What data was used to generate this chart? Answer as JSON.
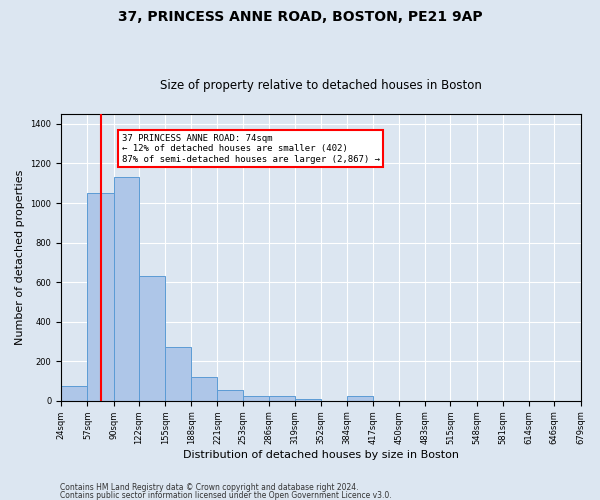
{
  "title1": "37, PRINCESS ANNE ROAD, BOSTON, PE21 9AP",
  "title2": "Size of property relative to detached houses in Boston",
  "xlabel": "Distribution of detached houses by size in Boston",
  "ylabel": "Number of detached properties",
  "footer1": "Contains HM Land Registry data © Crown copyright and database right 2024.",
  "footer2": "Contains public sector information licensed under the Open Government Licence v3.0.",
  "annotation_line1": "37 PRINCESS ANNE ROAD: 74sqm",
  "annotation_line2": "← 12% of detached houses are smaller (402)",
  "annotation_line3": "87% of semi-detached houses are larger (2,867) →",
  "bar_edges": [
    24,
    57,
    90,
    122,
    155,
    188,
    221,
    253,
    286,
    319,
    352,
    384,
    417,
    450,
    483,
    515,
    548,
    581,
    614,
    646,
    679
  ],
  "bar_heights": [
    75,
    1050,
    1130,
    630,
    270,
    120,
    55,
    25,
    25,
    10,
    0,
    25,
    0,
    0,
    0,
    0,
    0,
    0,
    0,
    0
  ],
  "bar_color": "#aec6e8",
  "bar_edge_color": "#5b9bd5",
  "property_line_x": 74,
  "property_line_color": "red",
  "ylim": [
    0,
    1450
  ],
  "yticks": [
    0,
    200,
    400,
    600,
    800,
    1000,
    1200,
    1400
  ],
  "background_color": "#dce6f1",
  "plot_bg_color": "#dce6f1",
  "annotation_box_color": "white",
  "annotation_box_edge": "red",
  "title1_fontsize": 10,
  "title2_fontsize": 8.5,
  "ylabel_fontsize": 8,
  "xlabel_fontsize": 8,
  "tick_fontsize": 6,
  "footer_fontsize": 5.5
}
